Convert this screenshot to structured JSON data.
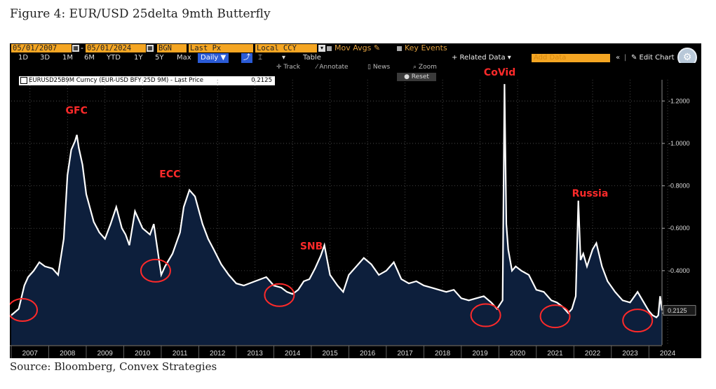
{
  "figure": {
    "title": "Figure 4: EUR/USD 25delta 9mth Butterfly",
    "source": "Source: Bloomberg, Convex Strategies"
  },
  "toolbar": {
    "start_date": "05/01/2007",
    "end_date": "05/01/2024",
    "source_code": "BGN",
    "field": "Last Px",
    "currency": "Local CCY",
    "mov_avgs": "Mov Avgs",
    "key_events": "Key Events",
    "timeframes": [
      "1D",
      "3D",
      "1M",
      "6M",
      "YTD",
      "1Y",
      "5Y",
      "Max"
    ],
    "frequency": "Daily ▼",
    "table": "Table",
    "related_data": "+ Related Data ▾",
    "add_data": "Add Data",
    "edit_chart": "✎ Edit Chart",
    "track": "Track",
    "annotate": "Annotate",
    "news": "News",
    "zoom": "Zoom",
    "reset": "Reset"
  },
  "legend": {
    "label": "EURUSD25B9M Curncy (EUR-USD BFY 25D 9M) - Last Price",
    "value": "0.2125"
  },
  "colors": {
    "background": "#000000",
    "area_fill": "#0d1f3c",
    "line": "#ffffff",
    "annotation": "#ff2a2a",
    "toolbar_orange": "#f5a623"
  },
  "chart_data": {
    "type": "area",
    "title": "EURUSD25B9M Curncy (EUR-USD BFY 25D 9M) - Last Price",
    "xlabel": "",
    "ylabel": "",
    "xlim": [
      2007.0,
      2024.35
    ],
    "ylim": [
      0.05,
      1.3
    ],
    "x_ticks": [
      "2007",
      "2008",
      "2009",
      "2010",
      "2011",
      "2012",
      "2013",
      "2014",
      "2015",
      "2016",
      "2017",
      "2018",
      "2019",
      "2020",
      "2021",
      "2022",
      "2023",
      "2024"
    ],
    "y_ticks": [
      "0.2000",
      "0.4000",
      "0.6000",
      "0.8000",
      "1.0000",
      "1.2000"
    ],
    "last_value": "0.2125",
    "grid": true,
    "series": [
      {
        "x": [
          2007.0,
          2007.2,
          2007.35,
          2007.45,
          2007.6,
          2007.75,
          2007.9,
          2008.1,
          2008.25,
          2008.4,
          2008.5,
          2008.6,
          2008.7,
          2008.75,
          2008.8,
          2008.9,
          2009.0,
          2009.2,
          2009.35,
          2009.5,
          2009.65,
          2009.8,
          2009.95,
          2010.05,
          2010.15,
          2010.3,
          2010.5,
          2010.7,
          2010.8,
          2010.9,
          2011.0,
          2011.1,
          2011.3,
          2011.5,
          2011.6,
          2011.75,
          2011.9,
          2012.1,
          2012.25,
          2012.4,
          2012.6,
          2012.8,
          2013.0,
          2013.2,
          2013.5,
          2013.8,
          2014.0,
          2014.2,
          2014.35,
          2014.5,
          2014.65,
          2014.8,
          2014.95,
          2015.1,
          2015.25,
          2015.35,
          2015.5,
          2015.7,
          2015.85,
          2016.0,
          2016.2,
          2016.4,
          2016.6,
          2016.8,
          2017.0,
          2017.2,
          2017.4,
          2017.6,
          2017.8,
          2018.0,
          2018.2,
          2018.4,
          2018.6,
          2018.8,
          2019.0,
          2019.2,
          2019.4,
          2019.6,
          2019.8,
          2019.95,
          2020.1,
          2020.15,
          2020.2,
          2020.25,
          2020.3,
          2020.35,
          2020.45,
          2020.6,
          2020.8,
          2021.0,
          2021.2,
          2021.4,
          2021.55,
          2021.7,
          2021.85,
          2021.95,
          2022.05,
          2022.12,
          2022.18,
          2022.25,
          2022.35,
          2022.5,
          2022.6,
          2022.75,
          2022.9,
          2023.1,
          2023.3,
          2023.5,
          2023.7,
          2023.9,
          2024.0,
          2024.1,
          2024.2,
          2024.25,
          2024.3,
          2024.35
        ],
        "y": [
          0.19,
          0.22,
          0.33,
          0.37,
          0.4,
          0.44,
          0.42,
          0.41,
          0.38,
          0.55,
          0.85,
          0.97,
          1.01,
          1.04,
          0.98,
          0.9,
          0.76,
          0.63,
          0.58,
          0.55,
          0.62,
          0.7,
          0.6,
          0.57,
          0.52,
          0.68,
          0.6,
          0.57,
          0.62,
          0.5,
          0.38,
          0.42,
          0.48,
          0.58,
          0.7,
          0.78,
          0.75,
          0.62,
          0.55,
          0.5,
          0.43,
          0.38,
          0.34,
          0.33,
          0.35,
          0.37,
          0.33,
          0.32,
          0.3,
          0.29,
          0.31,
          0.35,
          0.36,
          0.41,
          0.47,
          0.52,
          0.38,
          0.33,
          0.3,
          0.38,
          0.42,
          0.46,
          0.43,
          0.38,
          0.4,
          0.44,
          0.36,
          0.34,
          0.35,
          0.33,
          0.32,
          0.31,
          0.3,
          0.31,
          0.27,
          0.26,
          0.27,
          0.28,
          0.25,
          0.22,
          0.26,
          1.28,
          0.62,
          0.5,
          0.45,
          0.4,
          0.42,
          0.4,
          0.38,
          0.31,
          0.3,
          0.26,
          0.25,
          0.23,
          0.2,
          0.22,
          0.28,
          0.73,
          0.45,
          0.48,
          0.42,
          0.5,
          0.53,
          0.42,
          0.35,
          0.3,
          0.26,
          0.25,
          0.3,
          0.24,
          0.21,
          0.19,
          0.18,
          0.19,
          0.28,
          0.2125
        ]
      }
    ],
    "annotations": [
      {
        "text": "GFC",
        "x": 2008.45,
        "y": 1.14
      },
      {
        "text": "ECC",
        "x": 2010.95,
        "y": 0.84
      },
      {
        "text": "SNB",
        "x": 2014.7,
        "y": 0.5
      },
      {
        "text": "CoVid",
        "x": 2019.6,
        "y": 1.32
      },
      {
        "text": "Russia",
        "x": 2021.95,
        "y": 0.75
      }
    ],
    "highlighted_lows": [
      {
        "x": 2007.3,
        "y": 0.215
      },
      {
        "x": 2010.85,
        "y": 0.4
      },
      {
        "x": 2014.15,
        "y": 0.285
      },
      {
        "x": 2019.65,
        "y": 0.19
      },
      {
        "x": 2021.5,
        "y": 0.185
      },
      {
        "x": 2023.7,
        "y": 0.165
      }
    ]
  }
}
